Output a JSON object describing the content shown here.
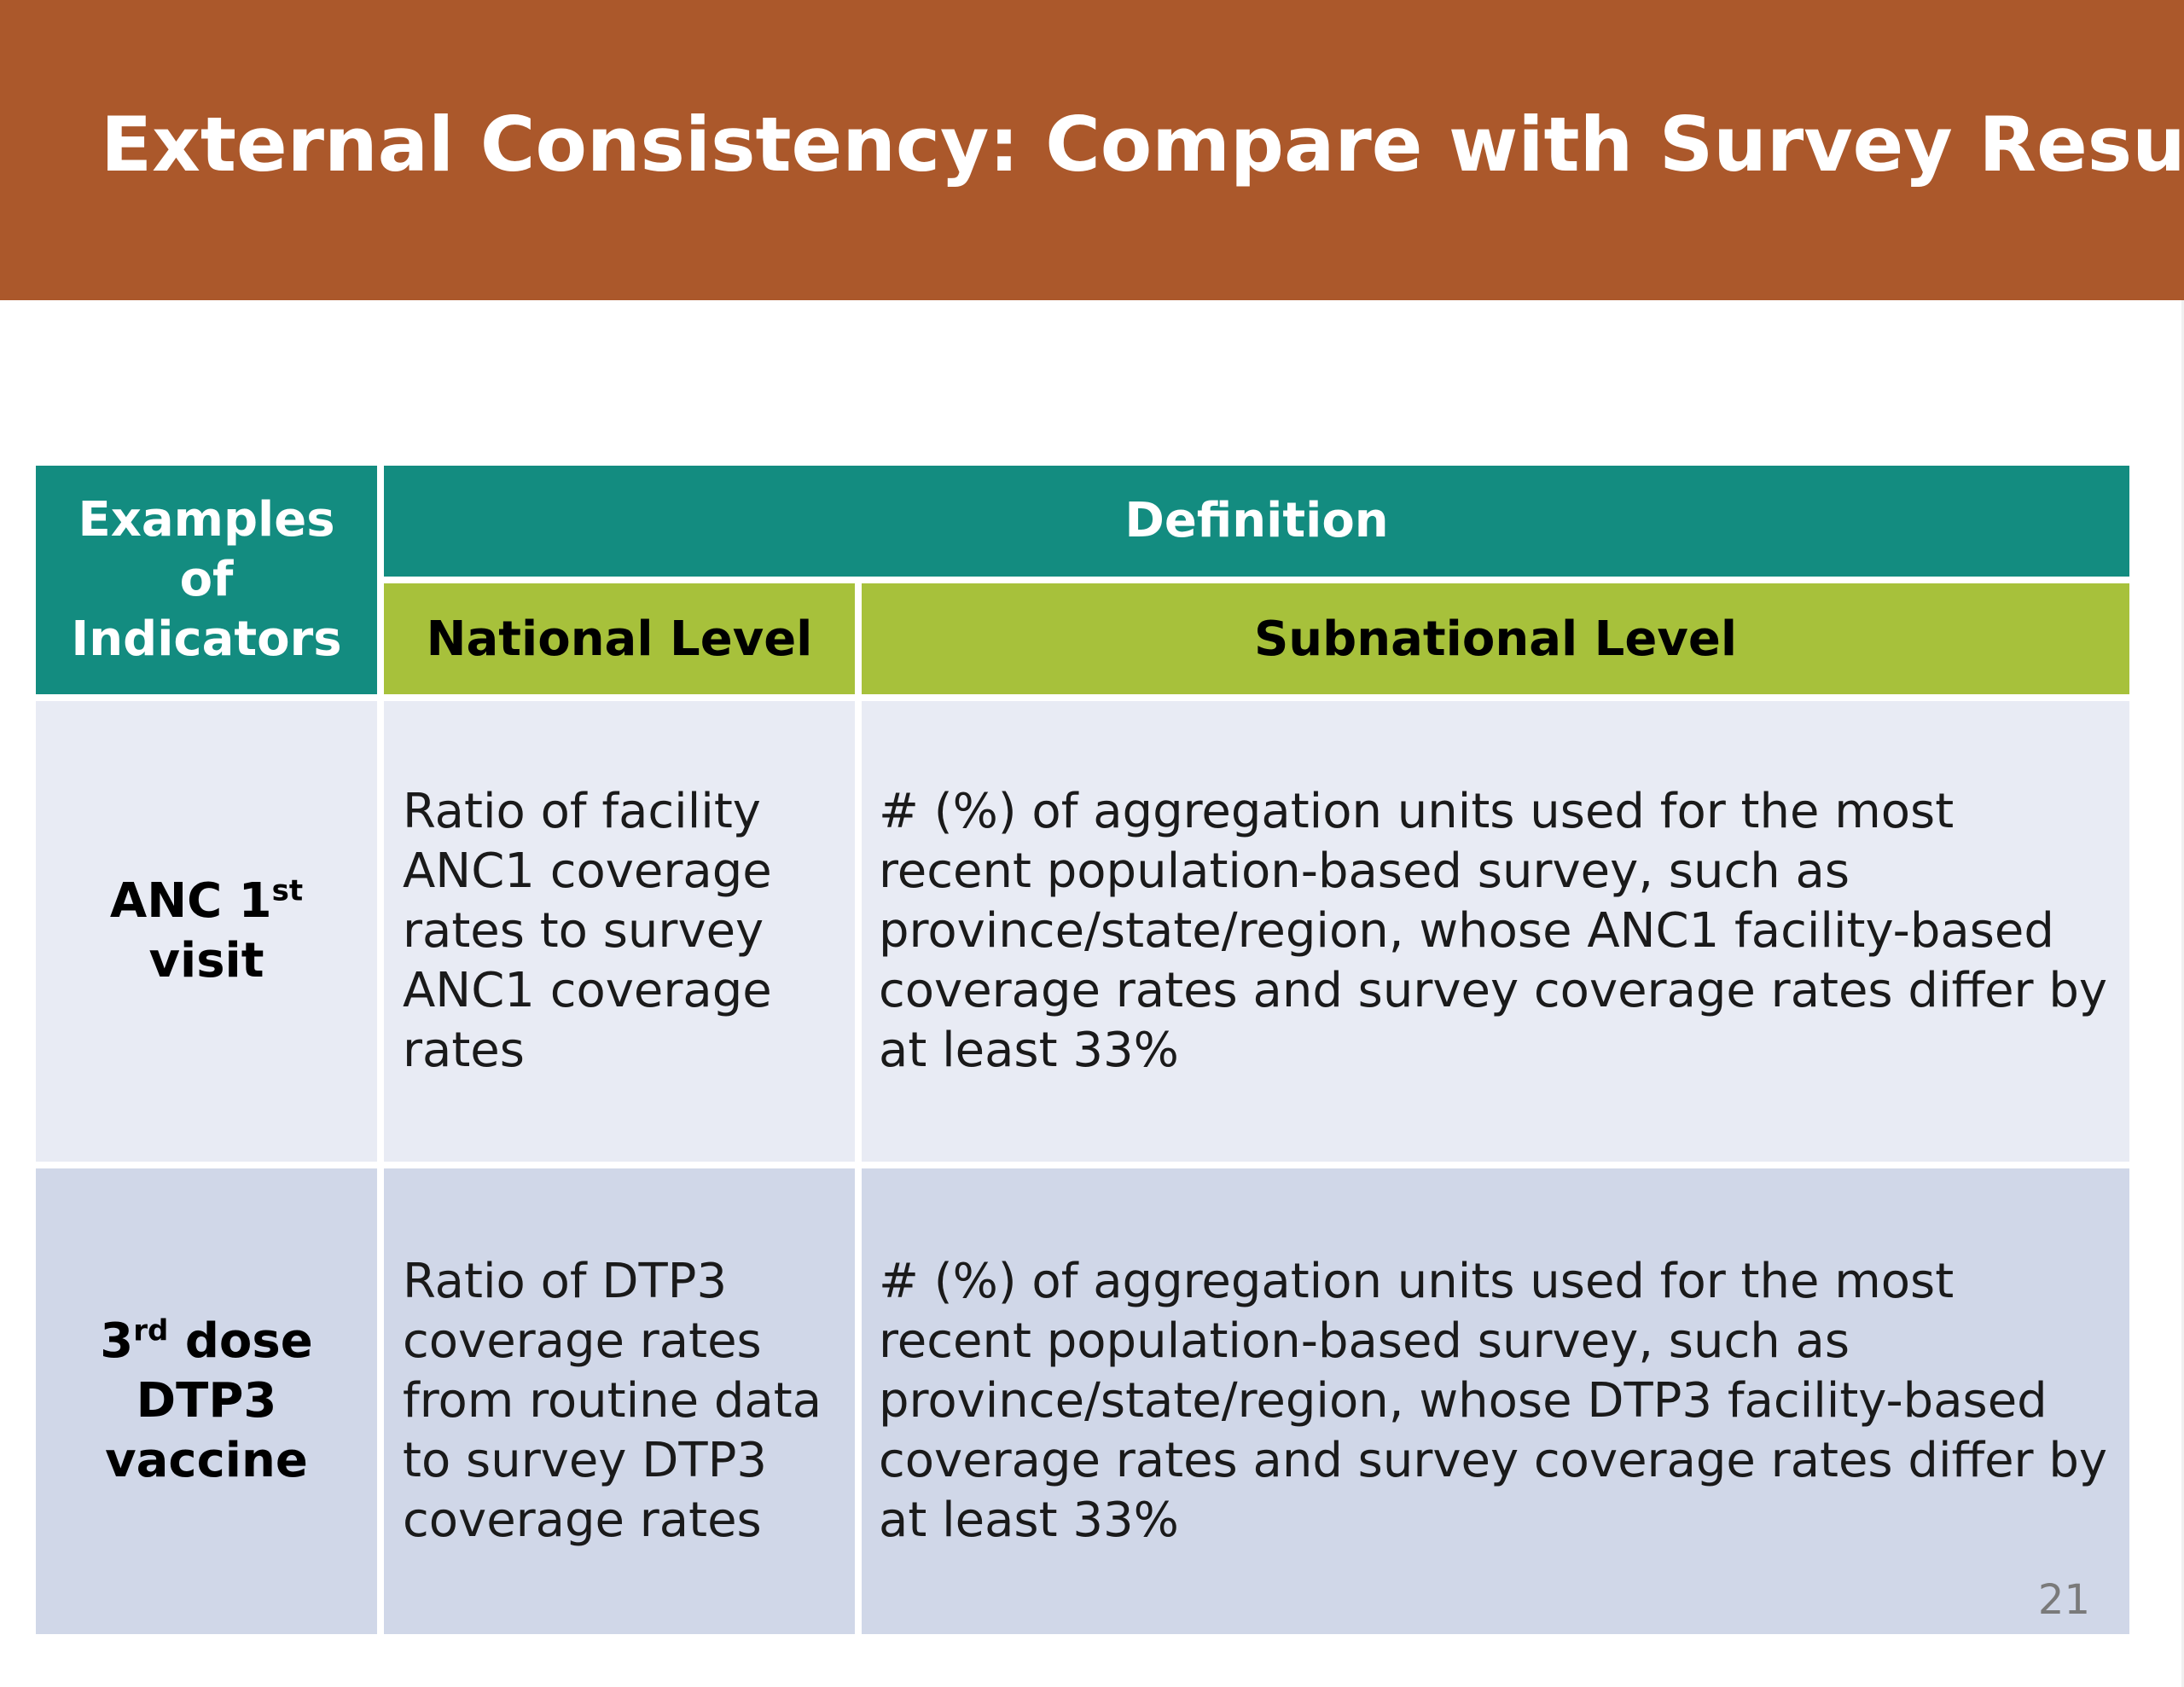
{
  "slide": {
    "title": "External Consistency: Compare with Survey Results",
    "page_number": "21",
    "colors": {
      "banner": "#ab582b",
      "header_teal": "#138c80",
      "header_lime": "#a7c13b",
      "row_light": "#e8ebf4",
      "row_dark": "#d0d7e8"
    }
  },
  "table": {
    "header": {
      "indicators": "Examples of Indicators",
      "definition": "Definition",
      "national": "National Level",
      "subnational": "Subnational Level"
    },
    "rows": [
      {
        "indicator_main": "ANC 1",
        "indicator_sup": "st",
        "indicator_tail": " visit",
        "national": "Ratio of facility ANC1 coverage rates to survey ANC1 coverage rates",
        "subnational": "# (%) of aggregation units used for the most recent population-based survey, such as province/state/region, whose ANC1 facility-based coverage rates  and survey coverage rates differ by at least 33%"
      },
      {
        "indicator_main": "3",
        "indicator_sup": "rd",
        "indicator_tail": " dose DTP3 vaccine",
        "national": "Ratio of DTP3 coverage rates from routine data to survey DTP3 coverage rates",
        "subnational": "# (%) of aggregation units used for the most recent population-based survey, such as province/state/region, whose DTP3 facility-based coverage rates and survey coverage rates differ by at least 33%"
      }
    ]
  }
}
